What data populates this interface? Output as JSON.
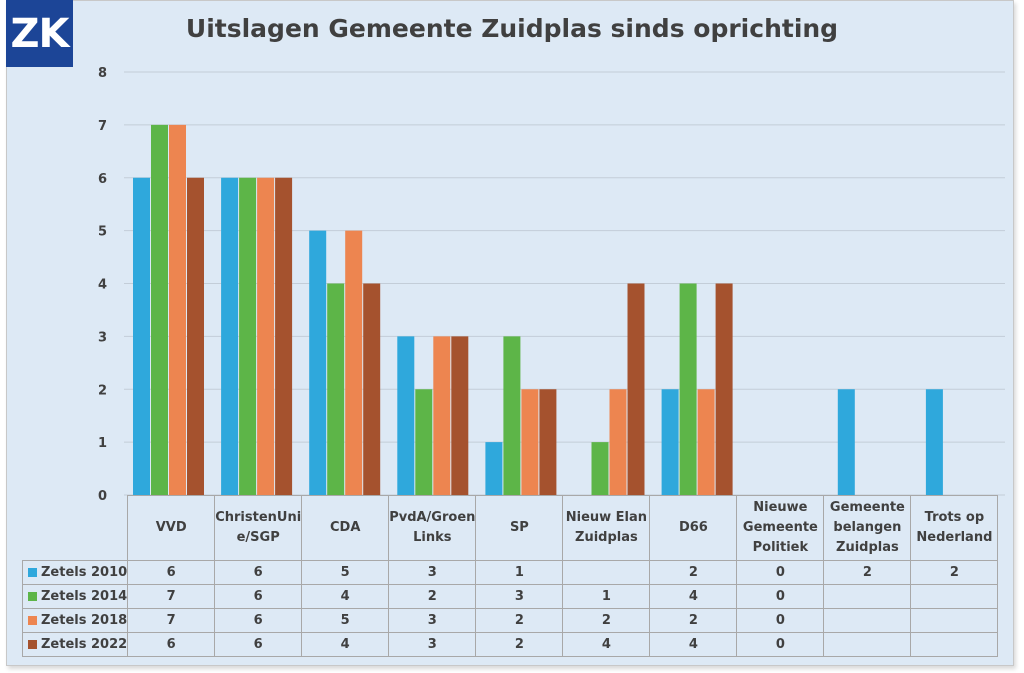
{
  "logo": "ZK",
  "chart_data": {
    "type": "bar",
    "title": "Uitslagen Gemeente Zuidplas sinds oprichting",
    "ylim": [
      0,
      8
    ],
    "yticks": [
      "0",
      "1",
      "2",
      "3",
      "4",
      "5",
      "6",
      "7",
      "8"
    ],
    "grid": true,
    "legend": "table-left",
    "categories": [
      "VVD",
      "ChristenUni e/SGP",
      "CDA",
      "PvdA/Groen Links",
      "SP",
      "Nieuw Elan Zuidplas",
      "D66",
      "Nieuwe Gemeente Politiek",
      "Gemeente belangen Zuidplas",
      "Trots op Nederland"
    ],
    "series": [
      {
        "name": "Zetels 2010",
        "color": "#2fa8dc",
        "values": [
          6,
          6,
          5,
          3,
          1,
          null,
          2,
          0,
          2,
          2
        ]
      },
      {
        "name": "Zetels 2014",
        "color": "#5db548",
        "values": [
          7,
          6,
          4,
          2,
          3,
          1,
          4,
          0,
          null,
          null
        ]
      },
      {
        "name": "Zetels 2018",
        "color": "#ed8550",
        "values": [
          7,
          6,
          5,
          3,
          2,
          2,
          2,
          0,
          null,
          null
        ]
      },
      {
        "name": "Zetels 2022",
        "color": "#a5522e",
        "values": [
          6,
          6,
          4,
          3,
          2,
          4,
          4,
          0,
          null,
          null
        ]
      }
    ]
  }
}
